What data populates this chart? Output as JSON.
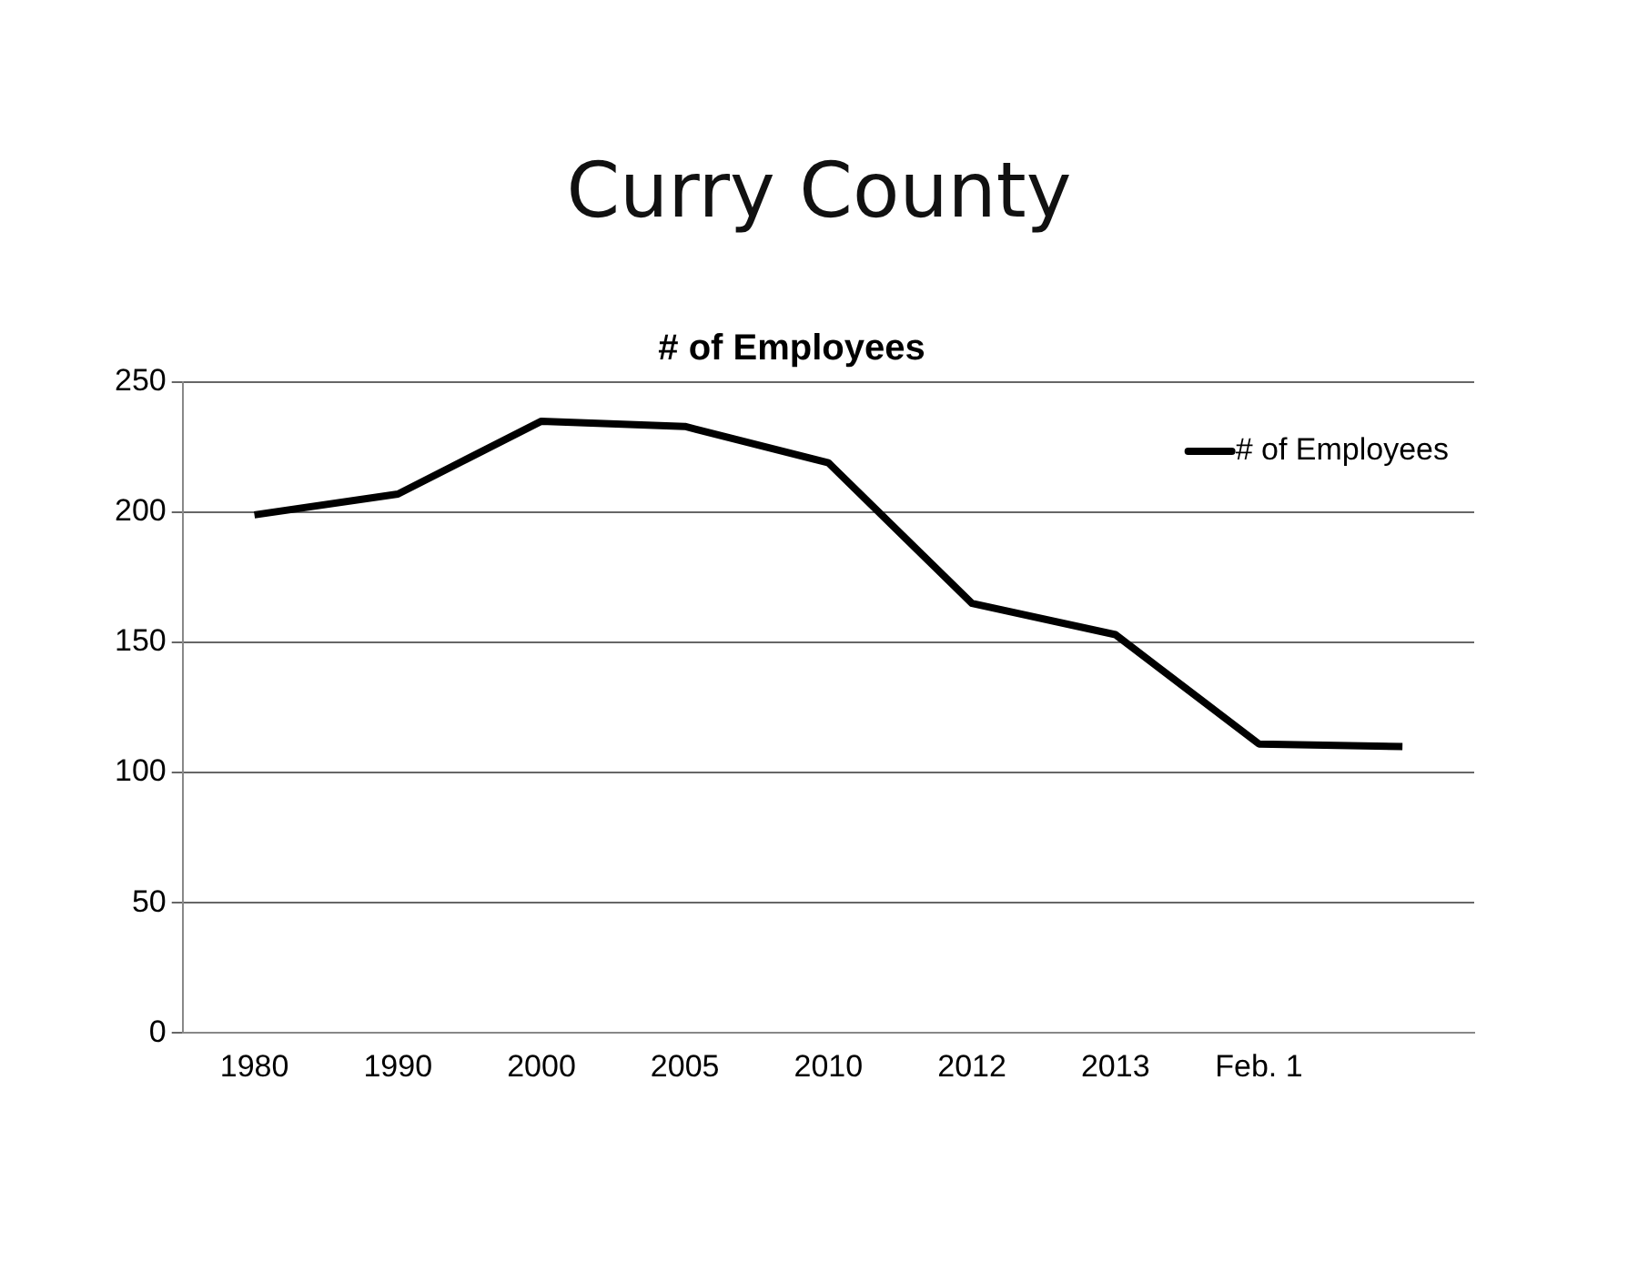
{
  "chart_data": {
    "type": "line",
    "title": "Curry County",
    "subtitle": "# of Employees",
    "categories": [
      "1980",
      "1990",
      "2000",
      "2005",
      "2010",
      "2012",
      "2013",
      "Feb. 1",
      null
    ],
    "series": [
      {
        "name": "# of Employees",
        "color": "#000000",
        "values": [
          199,
          207,
          235,
          233,
          219,
          165,
          153,
          111,
          110
        ]
      }
    ],
    "ylim": [
      0,
      250
    ],
    "yticks": [
      0,
      50,
      100,
      150,
      200,
      250
    ],
    "grid": "y",
    "legend": "top right",
    "marker": "none",
    "line_style": "solid"
  }
}
